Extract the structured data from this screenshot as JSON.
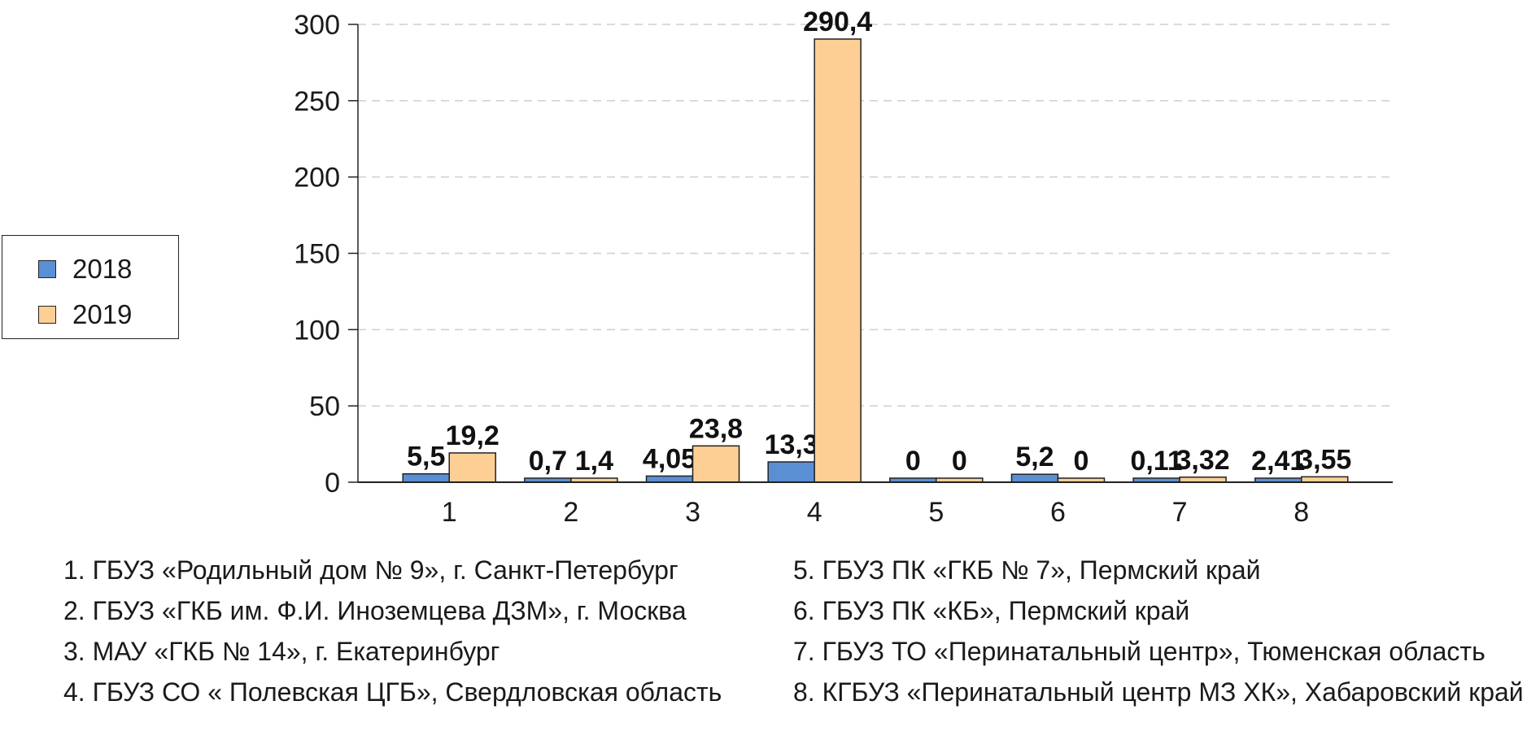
{
  "chart_data": {
    "type": "bar",
    "categories": [
      "1",
      "2",
      "3",
      "4",
      "5",
      "6",
      "7",
      "8"
    ],
    "series": [
      {
        "name": "2018",
        "color": "#5b8fd4",
        "values": [
          5.5,
          0.7,
          4.05,
          13.3,
          0,
          5.2,
          0.11,
          2.41
        ],
        "labels": [
          "5,5",
          "0,7",
          "4,05",
          "13,3",
          "0",
          "5,2",
          "0,11",
          "2,41"
        ]
      },
      {
        "name": "2019",
        "color": "#fdcf94",
        "values": [
          19.2,
          1.4,
          23.8,
          290.4,
          0,
          0,
          3.32,
          3.55
        ],
        "labels": [
          "19,2",
          "1,4",
          "23,8",
          "290,4",
          "0",
          "0",
          "3,32",
          "3,55"
        ]
      }
    ],
    "ylim": [
      0,
      300
    ],
    "yticks": [
      "0",
      "50",
      "100",
      "150",
      "200",
      "250",
      "300"
    ],
    "grid": true,
    "legend_position": "left"
  },
  "legend": [
    {
      "label": "2018",
      "color": "#5b8fd4"
    },
    {
      "label": "2019",
      "color": "#fdcf94"
    }
  ],
  "notes_left": [
    "1. ГБУЗ «Родильный дом № 9», г. Санкт-Петербург",
    "2. ГБУЗ «ГКБ им. Ф.И. Иноземцева ДЗМ», г. Москва",
    "3. МАУ «ГКБ № 14», г. Екатеринбург",
    "4. ГБУЗ СО « Полевская ЦГБ», Свердловская область"
  ],
  "notes_right": [
    "5. ГБУЗ ПК «ГКБ № 7», Пермский край",
    "6. ГБУЗ ПК «КБ», Пермский край",
    "7. ГБУЗ ТО «Перинатальный центр», Тюменская область",
    "8. КГБУЗ «Перинатальный центр МЗ ХК», Хабаровский край"
  ]
}
